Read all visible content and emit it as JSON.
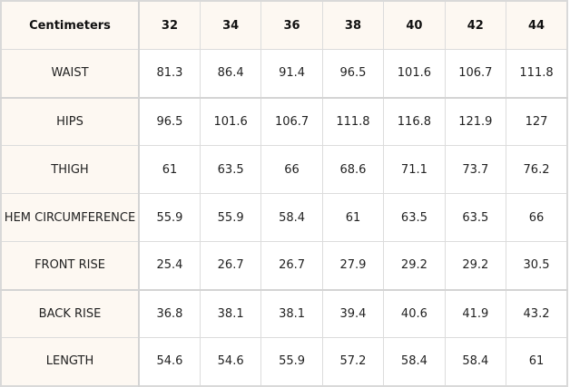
{
  "table": {
    "corner_label": "Centimeters",
    "sizes": [
      "32",
      "34",
      "36",
      "38",
      "40",
      "42",
      "44"
    ],
    "rows": [
      {
        "label": "WAIST",
        "values": [
          "81.3",
          "86.4",
          "91.4",
          "96.5",
          "101.6",
          "106.7",
          "111.8"
        ]
      },
      {
        "label": "HIPS",
        "values": [
          "96.5",
          "101.6",
          "106.7",
          "111.8",
          "116.8",
          "121.9",
          "127"
        ]
      },
      {
        "label": "THIGH",
        "values": [
          "61",
          "63.5",
          "66",
          "68.6",
          "71.1",
          "73.7",
          "76.2"
        ]
      },
      {
        "label": "HEM CIRCUMFERENCE",
        "values": [
          "55.9",
          "55.9",
          "58.4",
          "61",
          "63.5",
          "63.5",
          "66"
        ]
      },
      {
        "label": "FRONT RISE",
        "values": [
          "25.4",
          "26.7",
          "26.7",
          "27.9",
          "29.2",
          "29.2",
          "30.5"
        ]
      },
      {
        "label": "BACK RISE",
        "values": [
          "36.8",
          "38.1",
          "38.1",
          "39.4",
          "40.6",
          "41.9",
          "43.2"
        ]
      },
      {
        "label": "LENGTH",
        "values": [
          "54.6",
          "54.6",
          "55.9",
          "57.2",
          "58.4",
          "58.4",
          "61"
        ]
      }
    ]
  }
}
